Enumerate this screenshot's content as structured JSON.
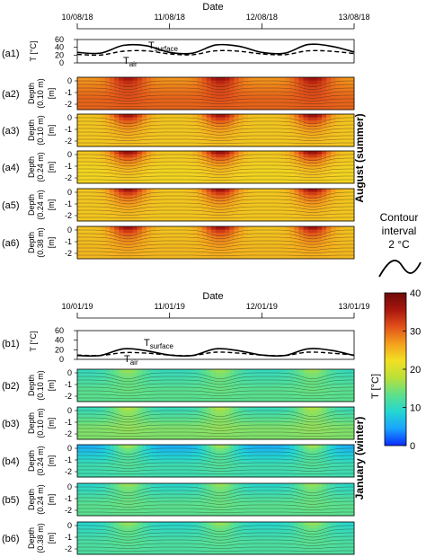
{
  "colors": {
    "colormap": [
      "#0b2bff",
      "#1aa3ff",
      "#24d6d2",
      "#5ee08a",
      "#b9e03a",
      "#f2e023",
      "#f4a01c",
      "#e2511a",
      "#a8160e",
      "#6e0a08"
    ],
    "line": "#000000"
  },
  "legend": {
    "contour_title": "Contour",
    "contour_sub": "interval",
    "contour_value": "2 °C",
    "colorbar_label": "T [°C]",
    "ticks": [
      "40",
      "30",
      "20",
      "10",
      "0"
    ]
  },
  "chart_data": [
    {
      "type": "line",
      "group": "August (summer)",
      "xlabel": "Date",
      "xticks": [
        "10/08/18",
        "11/08/18",
        "12/08/18",
        "13/08/18"
      ],
      "panel_label": "(a1)",
      "ylabel": "T [°C]",
      "yticks": [
        "60",
        "40",
        "20",
        "0"
      ],
      "ylim": [
        0,
        60
      ],
      "series": [
        {
          "name": "T surface",
          "name_base": "T",
          "name_sub": "surface",
          "style": "solid",
          "x": [
            0,
            0.25,
            0.5,
            0.75,
            1,
            1.25,
            1.5,
            1.75,
            2,
            2.25,
            2.5,
            2.75,
            3
          ],
          "values": [
            27,
            25,
            45,
            44,
            27,
            25,
            46,
            43,
            27,
            25,
            47,
            43,
            28
          ]
        },
        {
          "name": "T air",
          "name_base": "T",
          "name_sub": "air",
          "style": "dashed",
          "x": [
            0,
            0.25,
            0.5,
            0.75,
            1,
            1.25,
            1.5,
            1.75,
            2,
            2.25,
            2.5,
            2.75,
            3
          ],
          "values": [
            22,
            20,
            30,
            31,
            23,
            21,
            31,
            30,
            23,
            21,
            31,
            30,
            24
          ]
        }
      ]
    },
    {
      "type": "heatmap",
      "group": "August (summer)",
      "ylabel_group": "August (summer)",
      "panels": [
        {
          "label": "(a2)",
          "depth": "Depth",
          "sublabel": "(0.10 m)",
          "unit": "[m]",
          "yticks": [
            "0",
            "-1",
            "-2"
          ],
          "day_peak_T": [
            37,
            38,
            38
          ],
          "night_T": 27,
          "deep_T": 30
        },
        {
          "label": "(a3)",
          "depth": "Depth",
          "sublabel": "(0.10 m)",
          "unit": "[m]",
          "yticks": [
            "0",
            "-1",
            "-2"
          ],
          "day_peak_T": [
            38,
            38,
            39
          ],
          "night_T": 24,
          "deep_T": 24
        },
        {
          "label": "(a4)",
          "depth": "Depth",
          "sublabel": "(0.24 m)",
          "unit": "[m]",
          "yticks": [
            "0",
            "-1",
            "-2"
          ],
          "day_peak_T": [
            39,
            39,
            39
          ],
          "night_T": 24,
          "deep_T": 23
        },
        {
          "label": "(a5)",
          "depth": "Depth",
          "sublabel": "(0.24 m)",
          "unit": "[m]",
          "yticks": [
            "0",
            "-1",
            "-2"
          ],
          "day_peak_T": [
            38,
            38,
            38
          ],
          "night_T": 24,
          "deep_T": 24
        },
        {
          "label": "(a6)",
          "depth": "Depth",
          "sublabel": "(0.38 m)",
          "unit": "[m]",
          "yticks": [
            "0",
            "-1",
            "-2"
          ],
          "day_peak_T": [
            38,
            38,
            38
          ],
          "night_T": 24,
          "deep_T": 25
        }
      ]
    },
    {
      "type": "line",
      "group": "January (winter)",
      "xlabel": "Date",
      "xticks": [
        "10/01/19",
        "11/01/19",
        "12/01/19",
        "13/01/19"
      ],
      "panel_label": "(b1)",
      "ylabel": "T [°C]",
      "yticks": [
        "60",
        "40",
        "20",
        "0"
      ],
      "ylim": [
        0,
        60
      ],
      "series": [
        {
          "name": "T surface",
          "name_base": "T",
          "name_sub": "surface",
          "style": "solid",
          "x": [
            0,
            0.25,
            0.5,
            0.75,
            1,
            1.25,
            1.5,
            1.75,
            2,
            2.25,
            2.5,
            2.75,
            3
          ],
          "values": [
            8,
            8,
            22,
            18,
            9,
            8,
            22,
            18,
            9,
            8,
            22,
            19,
            8
          ]
        },
        {
          "name": "T air",
          "name_base": "T",
          "name_sub": "air",
          "style": "dashed",
          "x": [
            0,
            0.25,
            0.5,
            0.75,
            1,
            1.25,
            1.5,
            1.75,
            2,
            2.25,
            2.5,
            2.75,
            3
          ],
          "values": [
            9,
            8,
            14,
            13,
            9,
            8,
            15,
            13,
            9,
            8,
            15,
            13,
            9
          ]
        }
      ]
    },
    {
      "type": "heatmap",
      "group": "January (winter)",
      "ylabel_group": "January (winter)",
      "panels": [
        {
          "label": "(b2)",
          "depth": "Depth",
          "sublabel": "(0.10 m)",
          "unit": "[m]",
          "yticks": [
            "0",
            "-1",
            "-2"
          ],
          "day_peak_T": [
            17,
            17,
            17
          ],
          "night_T": 10,
          "deep_T": 13
        },
        {
          "label": "(b3)",
          "depth": "Depth",
          "sublabel": "(0.10 m)",
          "unit": "[m]",
          "yticks": [
            "0",
            "-1",
            "-2"
          ],
          "day_peak_T": [
            18,
            18,
            18
          ],
          "night_T": 10,
          "deep_T": 15
        },
        {
          "label": "(b4)",
          "depth": "Depth",
          "sublabel": "(0.24 m)",
          "unit": "[m]",
          "yticks": [
            "0",
            "-1",
            "-2"
          ],
          "day_peak_T": [
            18,
            18,
            18
          ],
          "night_T": 5,
          "deep_T": 11
        },
        {
          "label": "(b5)",
          "depth": "Depth",
          "sublabel": "(0.24 m)",
          "unit": "[m]",
          "yticks": [
            "0",
            "-1",
            "-2"
          ],
          "day_peak_T": [
            17,
            17,
            17
          ],
          "night_T": 9,
          "deep_T": 13
        },
        {
          "label": "(b6)",
          "depth": "Depth",
          "sublabel": "(0.38 m)",
          "unit": "[m]",
          "yticks": [
            "0",
            "-1",
            "-2"
          ],
          "day_peak_T": [
            17,
            17,
            17
          ],
          "night_T": 9,
          "deep_T": 12
        }
      ]
    }
  ]
}
